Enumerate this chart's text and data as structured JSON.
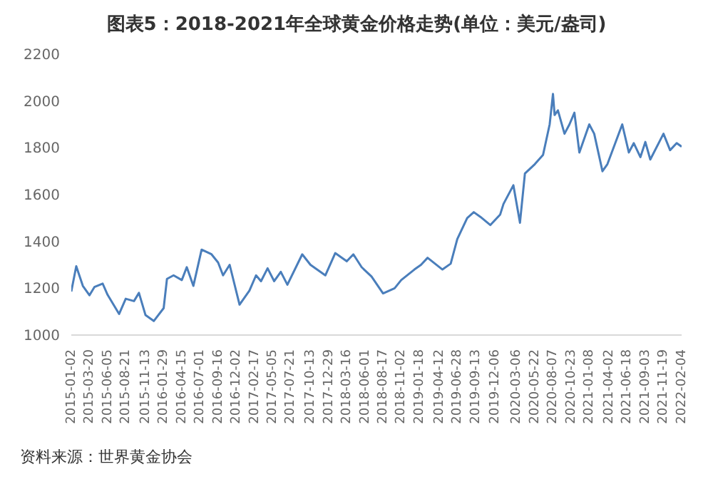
{
  "chart_data": {
    "type": "line",
    "title": "图表5：2018-2021年全球黄金价格走势(单位：美元/盎司)",
    "annotations": [
      "资料来源：世界黄金协会"
    ],
    "x": [
      "2015-01-02",
      "2015-01-23",
      "2015-02-20",
      "2015-03-20",
      "2015-04-10",
      "2015-05-15",
      "2015-06-05",
      "2015-07-24",
      "2015-08-21",
      "2015-09-25",
      "2015-10-16",
      "2015-11-13",
      "2015-12-18",
      "2016-01-29",
      "2016-02-12",
      "2016-03-11",
      "2016-04-15",
      "2016-05-06",
      "2016-06-03",
      "2016-07-08",
      "2016-08-19",
      "2016-09-16",
      "2016-10-07",
      "2016-11-04",
      "2016-12-16",
      "2017-01-27",
      "2017-02-24",
      "2017-03-17",
      "2017-04-14",
      "2017-05-12",
      "2017-06-09",
      "2017-07-07",
      "2017-09-08",
      "2017-10-13",
      "2017-12-15",
      "2018-01-26",
      "2018-03-16",
      "2018-04-13",
      "2018-05-18",
      "2018-06-29",
      "2018-08-17",
      "2018-10-05",
      "2018-11-02",
      "2018-12-28",
      "2019-01-25",
      "2019-02-22",
      "2019-04-26",
      "2019-05-31",
      "2019-06-28",
      "2019-08-09",
      "2019-09-06",
      "2019-10-04",
      "2019-11-15",
      "2019-12-27",
      "2020-01-10",
      "2020-02-21",
      "2020-03-20",
      "2020-04-10",
      "2020-05-22",
      "2020-06-26",
      "2020-07-24",
      "2020-08-07",
      "2020-08-14",
      "2020-08-28",
      "2020-09-25",
      "2020-10-16",
      "2020-11-06",
      "2020-11-27",
      "2021-01-08",
      "2021-01-29",
      "2021-03-05",
      "2021-03-26",
      "2021-05-28",
      "2021-06-25",
      "2021-07-16",
      "2021-08-13",
      "2021-09-03",
      "2021-09-24",
      "2021-11-19",
      "2021-12-17",
      "2022-01-14",
      "2022-02-04"
    ],
    "series": [
      {
        "color": "#4a7ebb",
        "values": [
          1186,
          1294,
          1210,
          1170,
          1205,
          1220,
          1172,
          1090,
          1155,
          1145,
          1180,
          1085,
          1060,
          1115,
          1240,
          1255,
          1235,
          1290,
          1210,
          1365,
          1345,
          1310,
          1255,
          1300,
          1130,
          1190,
          1255,
          1230,
          1285,
          1230,
          1270,
          1215,
          1345,
          1300,
          1255,
          1350,
          1315,
          1345,
          1290,
          1250,
          1178,
          1200,
          1235,
          1280,
          1300,
          1330,
          1280,
          1305,
          1410,
          1500,
          1525,
          1505,
          1470,
          1515,
          1560,
          1640,
          1480,
          1690,
          1730,
          1770,
          1900,
          2030,
          1940,
          1960,
          1860,
          1900,
          1950,
          1780,
          1900,
          1860,
          1700,
          1730,
          1900,
          1780,
          1820,
          1760,
          1825,
          1750,
          1860,
          1790,
          1820,
          1805
        ]
      }
    ],
    "xlim": [
      "2015-01-02",
      "2022-02-04"
    ],
    "xticks": [
      "2015-01-02",
      "2015-03-20",
      "2015-06-05",
      "2015-08-21",
      "2015-11-13",
      "2016-01-29",
      "2016-04-15",
      "2016-07-01",
      "2016-09-16",
      "2016-12-02",
      "2017-02-17",
      "2017-05-05",
      "2017-07-21",
      "2017-10-13",
      "2017-12-29",
      "2018-03-16",
      "2018-06-01",
      "2018-08-17",
      "2018-11-02",
      "2019-01-18",
      "2019-04-12",
      "2019-06-28",
      "2019-09-13",
      "2019-12-06",
      "2020-03-06",
      "2020-05-22",
      "2020-08-07",
      "2020-10-23",
      "2021-01-08",
      "2021-04-02",
      "2021-06-18",
      "2021-09-03",
      "2021-11-19",
      "2022-02-04"
    ],
    "ylim": [
      1000,
      2200
    ],
    "yticks": [
      1000,
      1200,
      1400,
      1600,
      1800,
      2000,
      2200
    ],
    "grid": false,
    "legend": false,
    "marker": "none",
    "line_style": "solid"
  }
}
